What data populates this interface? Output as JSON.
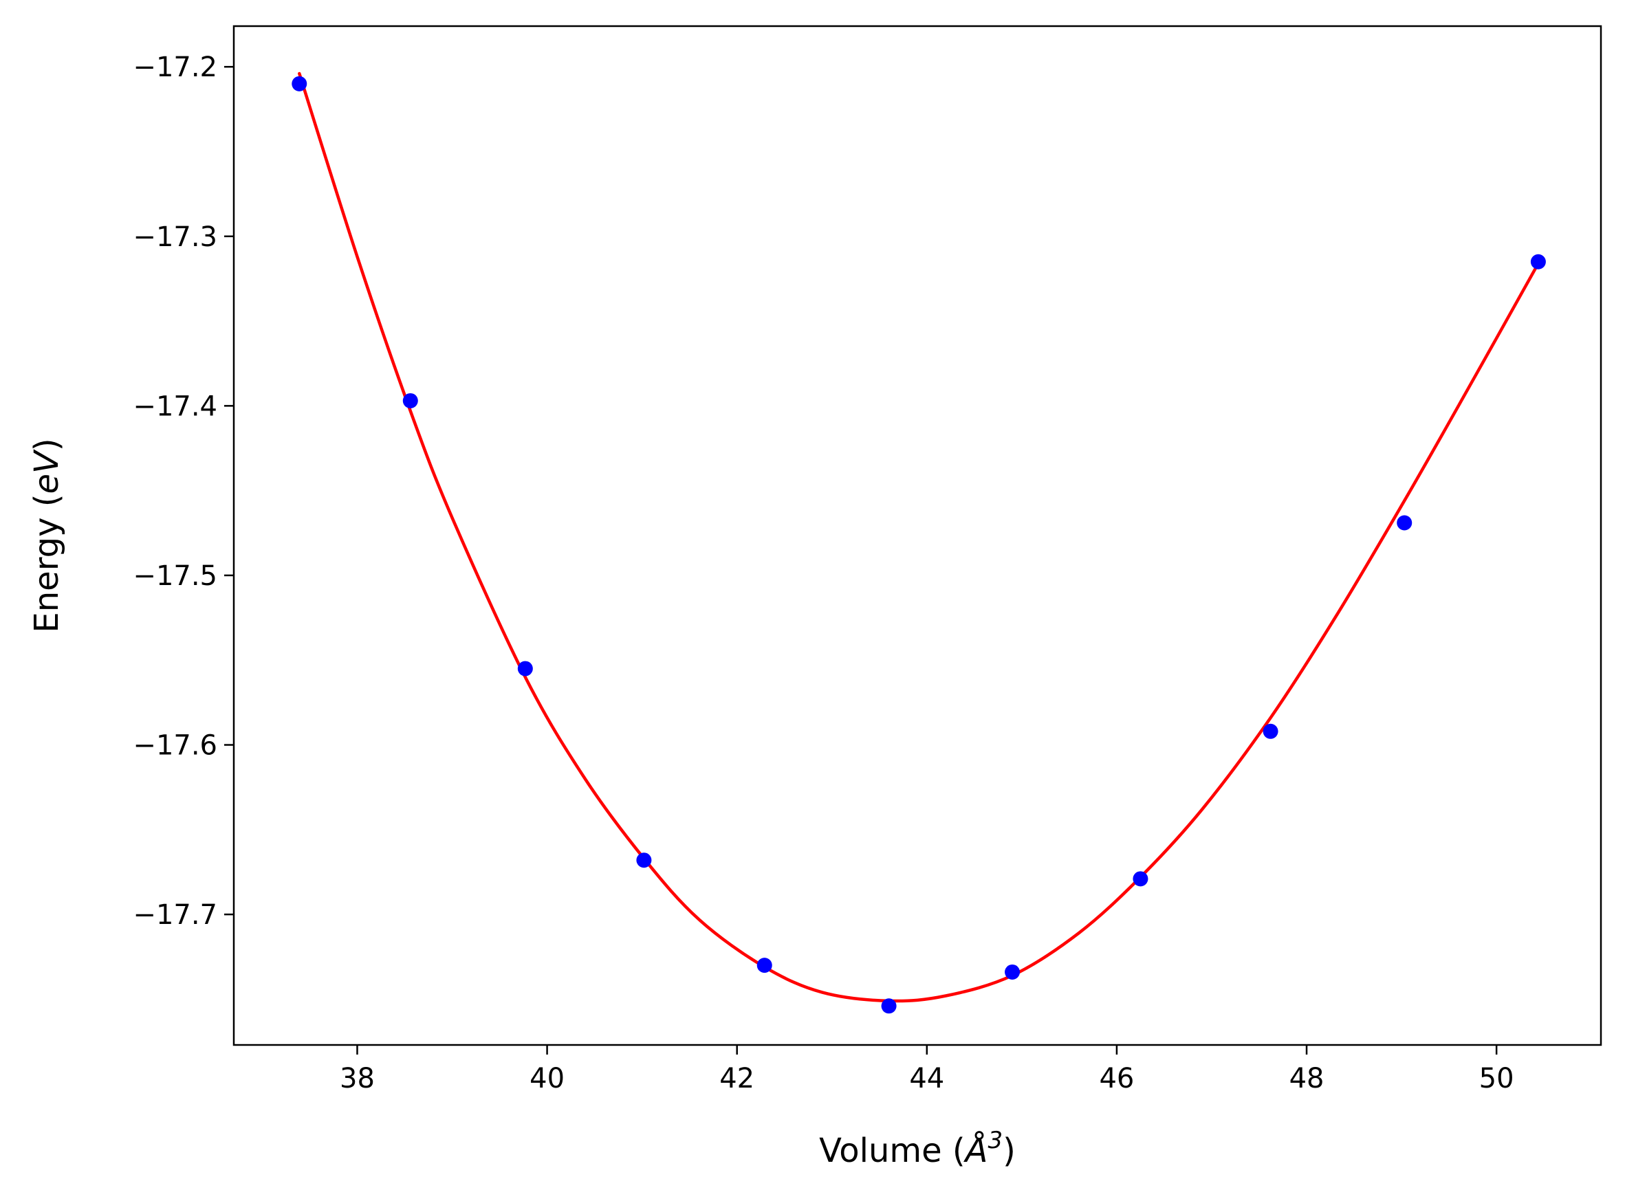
{
  "chart_data": {
    "type": "line",
    "title": "",
    "xlabel": {
      "prefix": "Volume (",
      "symbol": "Å",
      "exponent": "3",
      "suffix": ")"
    },
    "ylabel": {
      "prefix": "Energy (",
      "symbol": "eV",
      "suffix": ")"
    },
    "xlim": [
      36.7,
      51.1
    ],
    "ylim": [
      -17.777,
      -17.176
    ],
    "xticks": [
      38,
      40,
      42,
      44,
      46,
      48,
      50
    ],
    "yticks": [
      -17.2,
      -17.3,
      -17.4,
      -17.5,
      -17.6,
      -17.7
    ],
    "xtick_labels": [
      "38",
      "40",
      "42",
      "44",
      "46",
      "48",
      "50"
    ],
    "ytick_labels": [
      "−17.2",
      "−17.3",
      "−17.4",
      "−17.5",
      "−17.6",
      "−17.7"
    ],
    "grid": false,
    "legend": "none",
    "series": [
      {
        "kind": "scatter",
        "color": "#0000ff",
        "x": [
          37.39,
          38.56,
          39.77,
          41.02,
          42.29,
          43.6,
          44.9,
          46.25,
          47.62,
          49.03,
          50.44
        ],
        "y": [
          -17.21,
          -17.397,
          -17.555,
          -17.668,
          -17.73,
          -17.754,
          -17.734,
          -17.679,
          -17.592,
          -17.469,
          -17.315
        ]
      },
      {
        "kind": "line",
        "color": "#ff0000",
        "x": [
          37.39,
          38.0,
          38.56,
          39.0,
          39.77,
          40.4,
          41.02,
          41.6,
          42.29,
          42.9,
          43.6,
          44.2,
          44.9,
          45.6,
          46.25,
          46.9,
          47.62,
          48.3,
          49.03,
          49.7,
          50.44
        ],
        "y": [
          -17.204,
          -17.312,
          -17.403,
          -17.466,
          -17.56,
          -17.62,
          -17.667,
          -17.703,
          -17.731,
          -17.746,
          -17.751,
          -17.748,
          -17.736,
          -17.711,
          -17.678,
          -17.638,
          -17.584,
          -17.525,
          -17.456,
          -17.39,
          -17.316
        ]
      }
    ]
  }
}
